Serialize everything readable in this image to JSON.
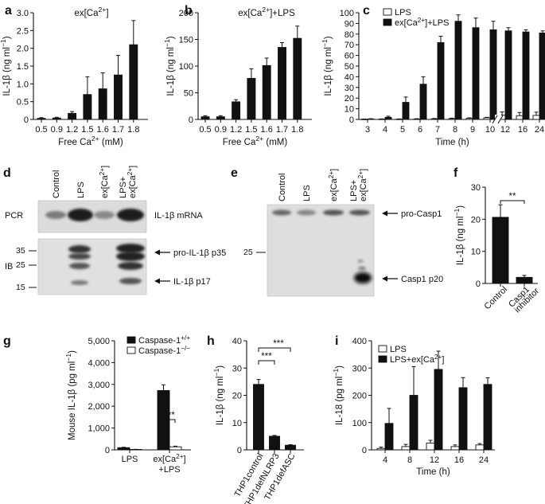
{
  "panels": {
    "a": {
      "label": "a"
    },
    "b": {
      "label": "b"
    },
    "c": {
      "label": "c"
    },
    "d": {
      "label": "d"
    },
    "e": {
      "label": "e"
    },
    "f": {
      "label": "f"
    },
    "g": {
      "label": "g"
    },
    "h": {
      "label": "h"
    },
    "i": {
      "label": "i"
    }
  },
  "chart_data": [
    {
      "id": "a",
      "type": "bar",
      "title": "ex[Ca2+]",
      "xlabel": "Free Ca2+ (mM)",
      "ylabel": "IL-1β (ng ml−1)",
      "categories": [
        "0.5",
        "0.9",
        "1.2",
        "1.5",
        "1.6",
        "1.7",
        "1.8"
      ],
      "values": [
        0.03,
        0.04,
        0.17,
        0.7,
        0.86,
        1.25,
        2.1
      ],
      "errors": [
        0.02,
        0.02,
        0.05,
        0.5,
        0.45,
        0.55,
        0.68
      ],
      "ylim": [
        0,
        3.0
      ],
      "yticks": [
        "0",
        "0.5",
        "1.0",
        "1.5",
        "2.0",
        "2.5",
        "3.0"
      ]
    },
    {
      "id": "b",
      "type": "bar",
      "title": "ex[Ca2+]+LPS",
      "xlabel": "Free Ca2+ (mM)",
      "ylabel": "IL-1β (ng ml−1)",
      "categories": [
        "0.5",
        "0.9",
        "1.2",
        "1.5",
        "1.6",
        "1.7",
        "1.8"
      ],
      "values": [
        5,
        5,
        33,
        77,
        101,
        135,
        152
      ],
      "errors": [
        2,
        2,
        4,
        18,
        14,
        9,
        23
      ],
      "ylim": [
        0,
        200
      ],
      "yticks": [
        "0",
        "50",
        "100",
        "150",
        "200"
      ]
    },
    {
      "id": "c",
      "type": "bar",
      "xlabel": "Time (h)",
      "ylabel": "IL-1β (ng ml−1)",
      "categories": [
        "3",
        "4",
        "5",
        "6",
        "7",
        "8",
        "9",
        "10",
        "12",
        "16",
        "24"
      ],
      "series": [
        {
          "name": "LPS",
          "values": [
            0.2,
            0.3,
            0.3,
            0.4,
            0.6,
            0.8,
            1.0,
            1.5,
            4,
            3.5,
            3.8
          ],
          "errors": [
            0.2,
            0.2,
            0.2,
            0.3,
            0.3,
            0.4,
            0.5,
            0.5,
            3,
            3,
            3
          ]
        },
        {
          "name": "ex[Ca2+]+LPS",
          "values": [
            0.4,
            2,
            16,
            33,
            72,
            92,
            86,
            84,
            83,
            82,
            81
          ],
          "errors": [
            0.3,
            1,
            5,
            7,
            6,
            6,
            9,
            8,
            3,
            2,
            2
          ]
        }
      ],
      "ylim": [
        0,
        100
      ],
      "yticks": [
        "0",
        "10",
        "20",
        "30",
        "40",
        "50",
        "60",
        "70",
        "80",
        "90",
        "100"
      ]
    },
    {
      "id": "f",
      "type": "bar",
      "ylabel": "IL-1β (ng ml−1)",
      "categories": [
        "Control",
        "Casp1 inhibitor"
      ],
      "values": [
        20.6,
        1.9
      ],
      "errors": [
        3.9,
        0.6
      ],
      "ylim": [
        0,
        30
      ],
      "yticks": [
        "0",
        "10",
        "20",
        "30"
      ],
      "significance": "**"
    },
    {
      "id": "g",
      "type": "bar",
      "ylabel": "Mouse IL-1β (pg ml−1)",
      "categories": [
        "LPS",
        "ex[Ca2+]+LPS"
      ],
      "series": [
        {
          "name": "Caspase-1+/+",
          "values": [
            100,
            2720
          ],
          "errors": [
            20,
            260
          ]
        },
        {
          "name": "Caspase-1−/−",
          "values": [
            20,
            140
          ],
          "errors": [
            5,
            30
          ]
        }
      ],
      "ylim": [
        0,
        5000
      ],
      "yticks": [
        "0",
        "1,000",
        "2,000",
        "3,000",
        "4,000",
        "5,000"
      ],
      "significance": "***"
    },
    {
      "id": "h",
      "type": "bar",
      "ylabel": "IL-1β (ng ml−1)",
      "categories": [
        "THP1control",
        "THP1defNLRP3",
        "THP1defASC"
      ],
      "values": [
        24.0,
        5.0,
        1.7
      ],
      "errors": [
        1.8,
        0.3,
        0.2
      ],
      "ylim": [
        0,
        40
      ],
      "yticks": [
        "0",
        "10",
        "20",
        "30",
        "40"
      ],
      "significance": [
        "***",
        "***"
      ]
    },
    {
      "id": "i",
      "type": "bar",
      "xlabel": "Time (h)",
      "ylabel": "IL-18 (pg ml−1)",
      "categories": [
        "4",
        "8",
        "12",
        "16",
        "24"
      ],
      "series": [
        {
          "name": "LPS",
          "values": [
            5,
            12,
            25,
            12,
            18
          ],
          "errors": [
            5,
            8,
            10,
            6,
            5
          ]
        },
        {
          "name": "LPS+ex[Ca2+]",
          "values": [
            97,
            200,
            295,
            228,
            240
          ],
          "errors": [
            55,
            105,
            67,
            37,
            24
          ]
        }
      ],
      "ylim": [
        0,
        400
      ],
      "yticks": [
        "0",
        "100",
        "200",
        "300",
        "400"
      ]
    }
  ],
  "blot_d": {
    "lanes": [
      "Control",
      "LPS",
      "ex[Ca2+]",
      "LPS+ex[Ca2+]"
    ],
    "row_pcr": "PCR",
    "row_ib": "IB",
    "label_mrna": "IL-1β mRNA",
    "label_p35": "pro-IL-1β p35",
    "label_p17": "IL-1β p17",
    "markers": [
      "35",
      "25",
      "15"
    ]
  },
  "blot_e": {
    "lanes": [
      "Control",
      "LPS",
      "ex[Ca2+]",
      "LPS+ex[Ca2+]"
    ],
    "label_pro": "pro-Casp1",
    "label_p20": "Casp1 p20",
    "markers": [
      "25"
    ]
  }
}
